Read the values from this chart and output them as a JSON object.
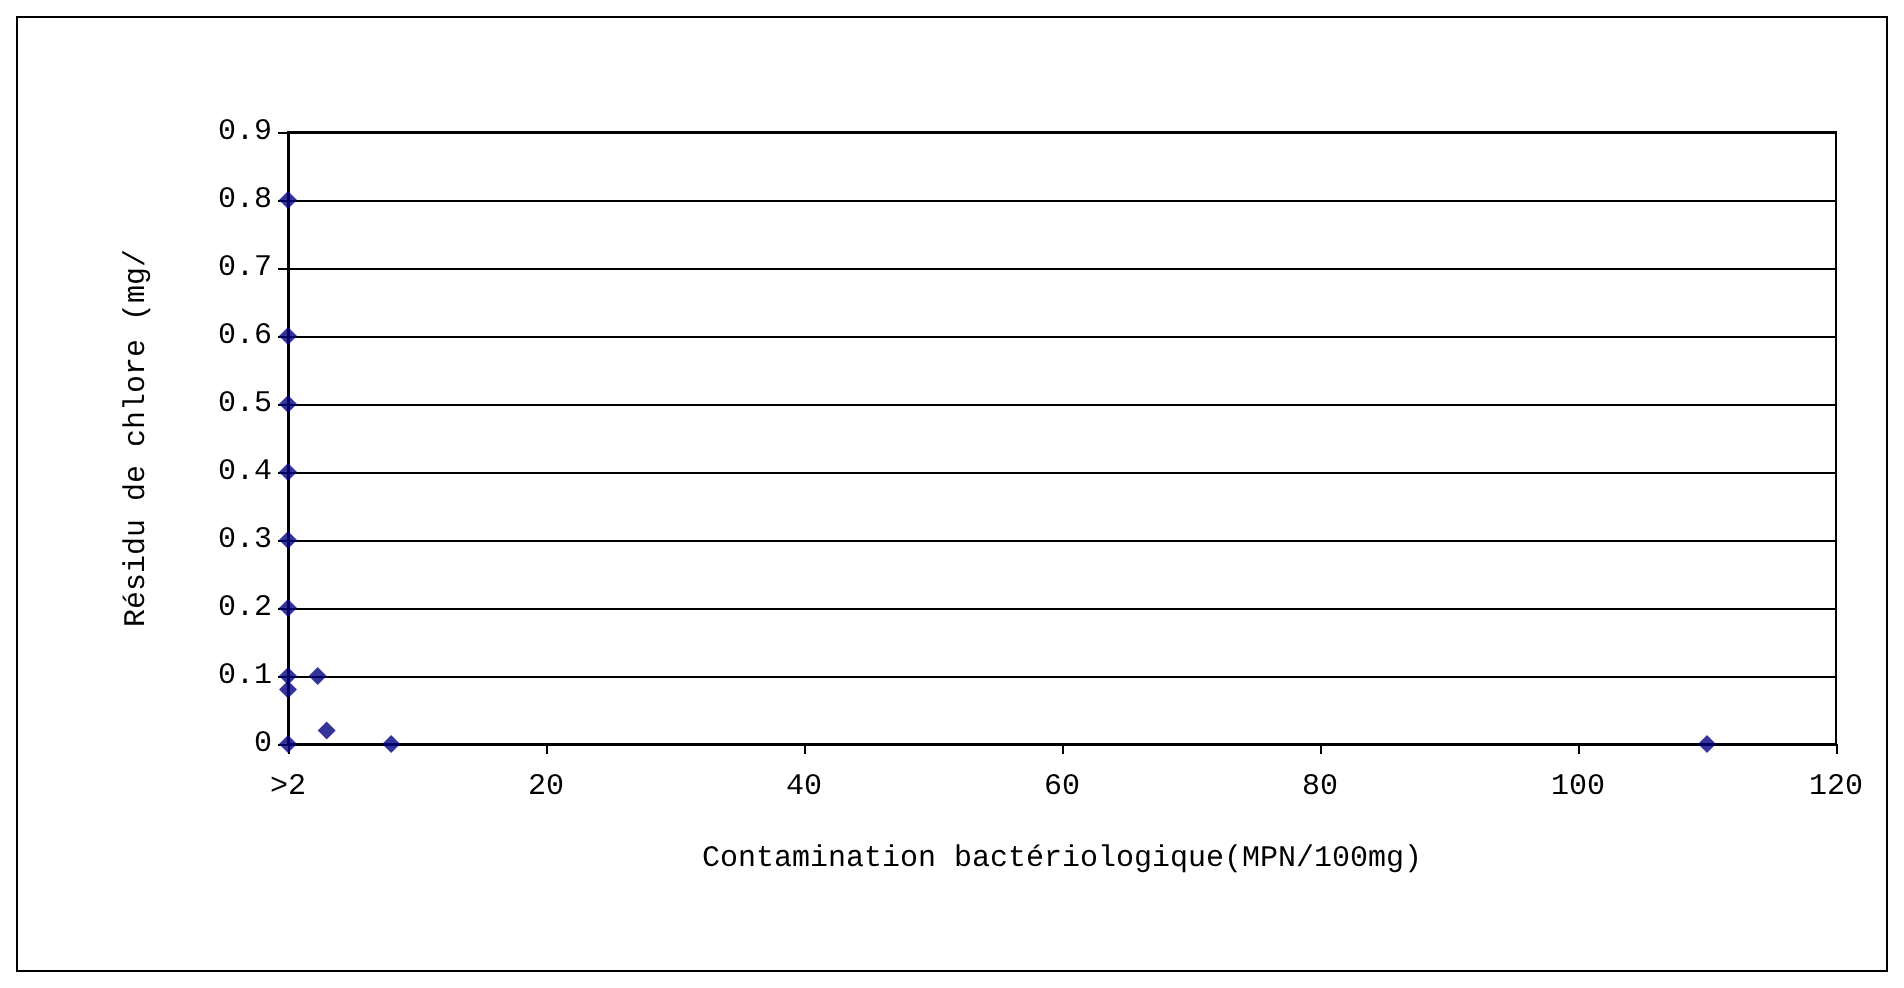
{
  "chart_data": {
    "type": "scatter",
    "xlabel": "Contamination bactériologique(MPN/100mg)",
    "ylabel": "Résidu de chlore (mg/",
    "x": [
      0,
      0,
      0,
      0,
      0,
      0,
      0,
      0,
      0,
      2.3,
      3,
      8,
      110
    ],
    "values": [
      0.8,
      0.6,
      0.5,
      0.4,
      0.3,
      0.2,
      0.1,
      0.08,
      0,
      0.1,
      0.02,
      0,
      0
    ],
    "color": "#000080",
    "marker": "diamond",
    "grid": "y",
    "xlim": [
      0,
      120
    ],
    "xticks": [
      {
        "value": 0,
        "label": ">2"
      },
      20,
      40,
      60,
      80,
      100,
      120
    ],
    "ylim": [
      0,
      0.9
    ],
    "yticks": [
      0,
      0.1,
      0.2,
      0.3,
      0.4,
      0.5,
      0.6,
      0.7,
      0.8,
      0.9
    ]
  }
}
